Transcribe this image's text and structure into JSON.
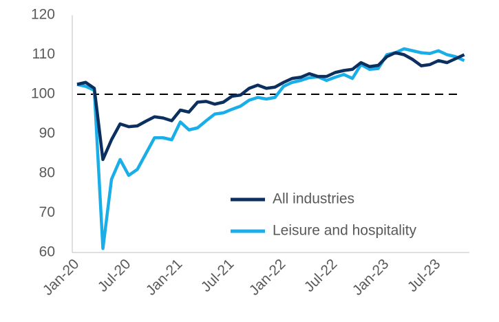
{
  "chart_data": {
    "type": "line",
    "categories": [
      "Jan-20",
      null,
      null,
      null,
      null,
      null,
      "Jul-20",
      null,
      null,
      null,
      null,
      null,
      "Jan-21",
      null,
      null,
      null,
      null,
      null,
      "Jul-21",
      null,
      null,
      null,
      null,
      null,
      "Jan-22",
      null,
      null,
      null,
      null,
      null,
      "Jul-22",
      null,
      null,
      null,
      null,
      null,
      "Jan-23",
      null,
      null,
      null,
      null,
      null,
      "Jul-23",
      null,
      null,
      null
    ],
    "series": [
      {
        "name": "All industries",
        "color": "#0b2f5e",
        "values": [
          102.5,
          103,
          101.5,
          83.5,
          88.5,
          92.5,
          91.8,
          92,
          93.2,
          94.3,
          94,
          93.3,
          96,
          95.5,
          98,
          98.2,
          97.5,
          98,
          99.5,
          99.8,
          101.5,
          102.3,
          101.5,
          101.8,
          103,
          104,
          104.3,
          105.2,
          104.5,
          104.5,
          105.5,
          106,
          106.3,
          108,
          107,
          107.3,
          109.5,
          110.5,
          110,
          108.8,
          107.2,
          107.5,
          108.5,
          108,
          109,
          110
        ]
      },
      {
        "name": "Leisure and hospitality",
        "color": "#1aaee8",
        "values": [
          102.5,
          102,
          101,
          61,
          78.5,
          83.5,
          79.5,
          81,
          85,
          89,
          89,
          88.5,
          93,
          91,
          91.5,
          93.3,
          95,
          95.3,
          96.2,
          97,
          98.5,
          99.2,
          98.8,
          99.2,
          102,
          103,
          103.5,
          104.2,
          104.4,
          103.5,
          104.3,
          105,
          104,
          107.5,
          106.3,
          106.5,
          110,
          110.5,
          111.5,
          111,
          110.5,
          110.3,
          111,
          110,
          109.5,
          108.5
        ]
      }
    ],
    "reference_line": 100,
    "ylim": [
      60,
      120
    ],
    "yticks": [
      60,
      70,
      80,
      90,
      100,
      110,
      120
    ],
    "grid": false,
    "legend": "lower right"
  }
}
